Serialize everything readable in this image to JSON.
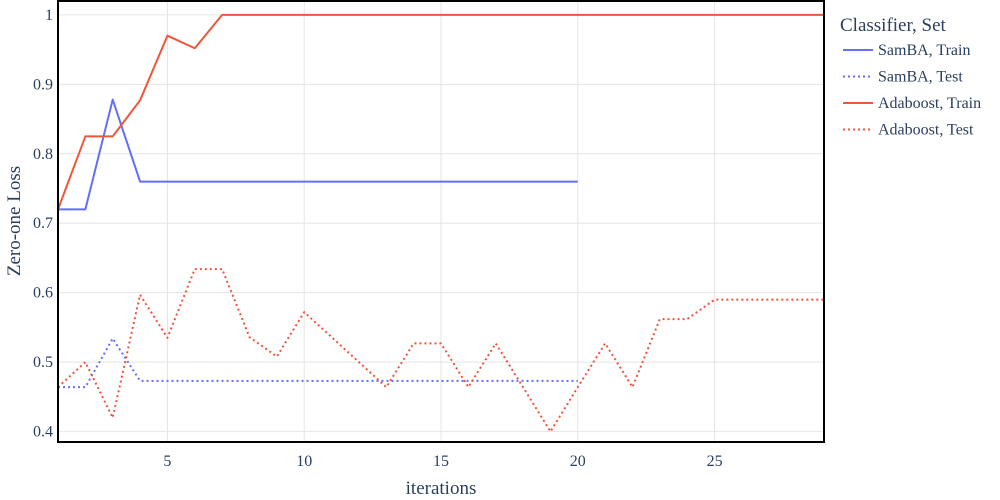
{
  "chart_data": {
    "type": "line",
    "xlabel": "iterations",
    "ylabel": "Zero-one Loss",
    "xlim": [
      1,
      29
    ],
    "ylim": [
      0.385,
      1.02
    ],
    "x_ticks": [
      5,
      10,
      15,
      20,
      25
    ],
    "y_ticks": [
      0.4,
      0.5,
      0.6,
      0.7,
      0.8,
      0.9,
      1
    ],
    "y_tick_labels": [
      "0.4",
      "0.5",
      "0.6",
      "0.7",
      "0.8",
      "0.9",
      "1"
    ],
    "grid": true,
    "legend_title": "Classifier, Set",
    "legend_position": "right",
    "series": [
      {
        "name": "SamBA, Train",
        "color": "#636efa",
        "dash": "solid",
        "x": [
          1,
          2,
          3,
          4,
          5,
          6,
          7,
          8,
          9,
          10,
          11,
          12,
          13,
          14,
          15,
          16,
          17,
          18,
          19,
          20
        ],
        "y": [
          0.72,
          0.72,
          0.878,
          0.76,
          0.76,
          0.76,
          0.76,
          0.76,
          0.76,
          0.76,
          0.76,
          0.76,
          0.76,
          0.76,
          0.76,
          0.76,
          0.76,
          0.76,
          0.76,
          0.76
        ]
      },
      {
        "name": "SamBA, Test",
        "color": "#636efa",
        "dash": "dot",
        "x": [
          1,
          2,
          3,
          4,
          5,
          6,
          7,
          8,
          9,
          10,
          11,
          12,
          13,
          14,
          15,
          16,
          17,
          18,
          19,
          20
        ],
        "y": [
          0.464,
          0.464,
          0.534,
          0.473,
          0.473,
          0.473,
          0.473,
          0.473,
          0.473,
          0.473,
          0.473,
          0.473,
          0.473,
          0.473,
          0.473,
          0.473,
          0.473,
          0.473,
          0.473,
          0.473
        ]
      },
      {
        "name": "Adaboost, Train",
        "color": "#ef553b",
        "dash": "solid",
        "x": [
          1,
          2,
          3,
          4,
          5,
          6,
          7,
          8,
          9,
          10,
          11,
          12,
          13,
          14,
          15,
          16,
          17,
          18,
          19,
          20,
          21,
          22,
          23,
          24,
          25,
          26,
          27,
          28,
          29
        ],
        "y": [
          0.72,
          0.825,
          0.825,
          0.877,
          0.97,
          0.952,
          1,
          1,
          1,
          1,
          1,
          1,
          1,
          1,
          1,
          1,
          1,
          1,
          1,
          1,
          1,
          1,
          1,
          1,
          1,
          1,
          1,
          1,
          1
        ]
      },
      {
        "name": "Adaboost, Test",
        "color": "#ef553b",
        "dash": "dot",
        "x": [
          1,
          2,
          3,
          4,
          5,
          6,
          7,
          8,
          9,
          10,
          11,
          12,
          13,
          14,
          15,
          16,
          17,
          18,
          19,
          20,
          21,
          22,
          23,
          24,
          25,
          26,
          27,
          28,
          29
        ],
        "y": [
          0.464,
          0.5,
          0.42,
          0.597,
          0.535,
          0.634,
          0.634,
          0.536,
          0.508,
          0.572,
          0.536,
          0.5,
          0.464,
          0.527,
          0.527,
          0.464,
          0.527,
          0.464,
          0.4,
          0.464,
          0.527,
          0.464,
          0.562,
          0.562,
          0.59,
          0.59,
          0.59,
          0.59,
          0.59
        ]
      }
    ]
  }
}
